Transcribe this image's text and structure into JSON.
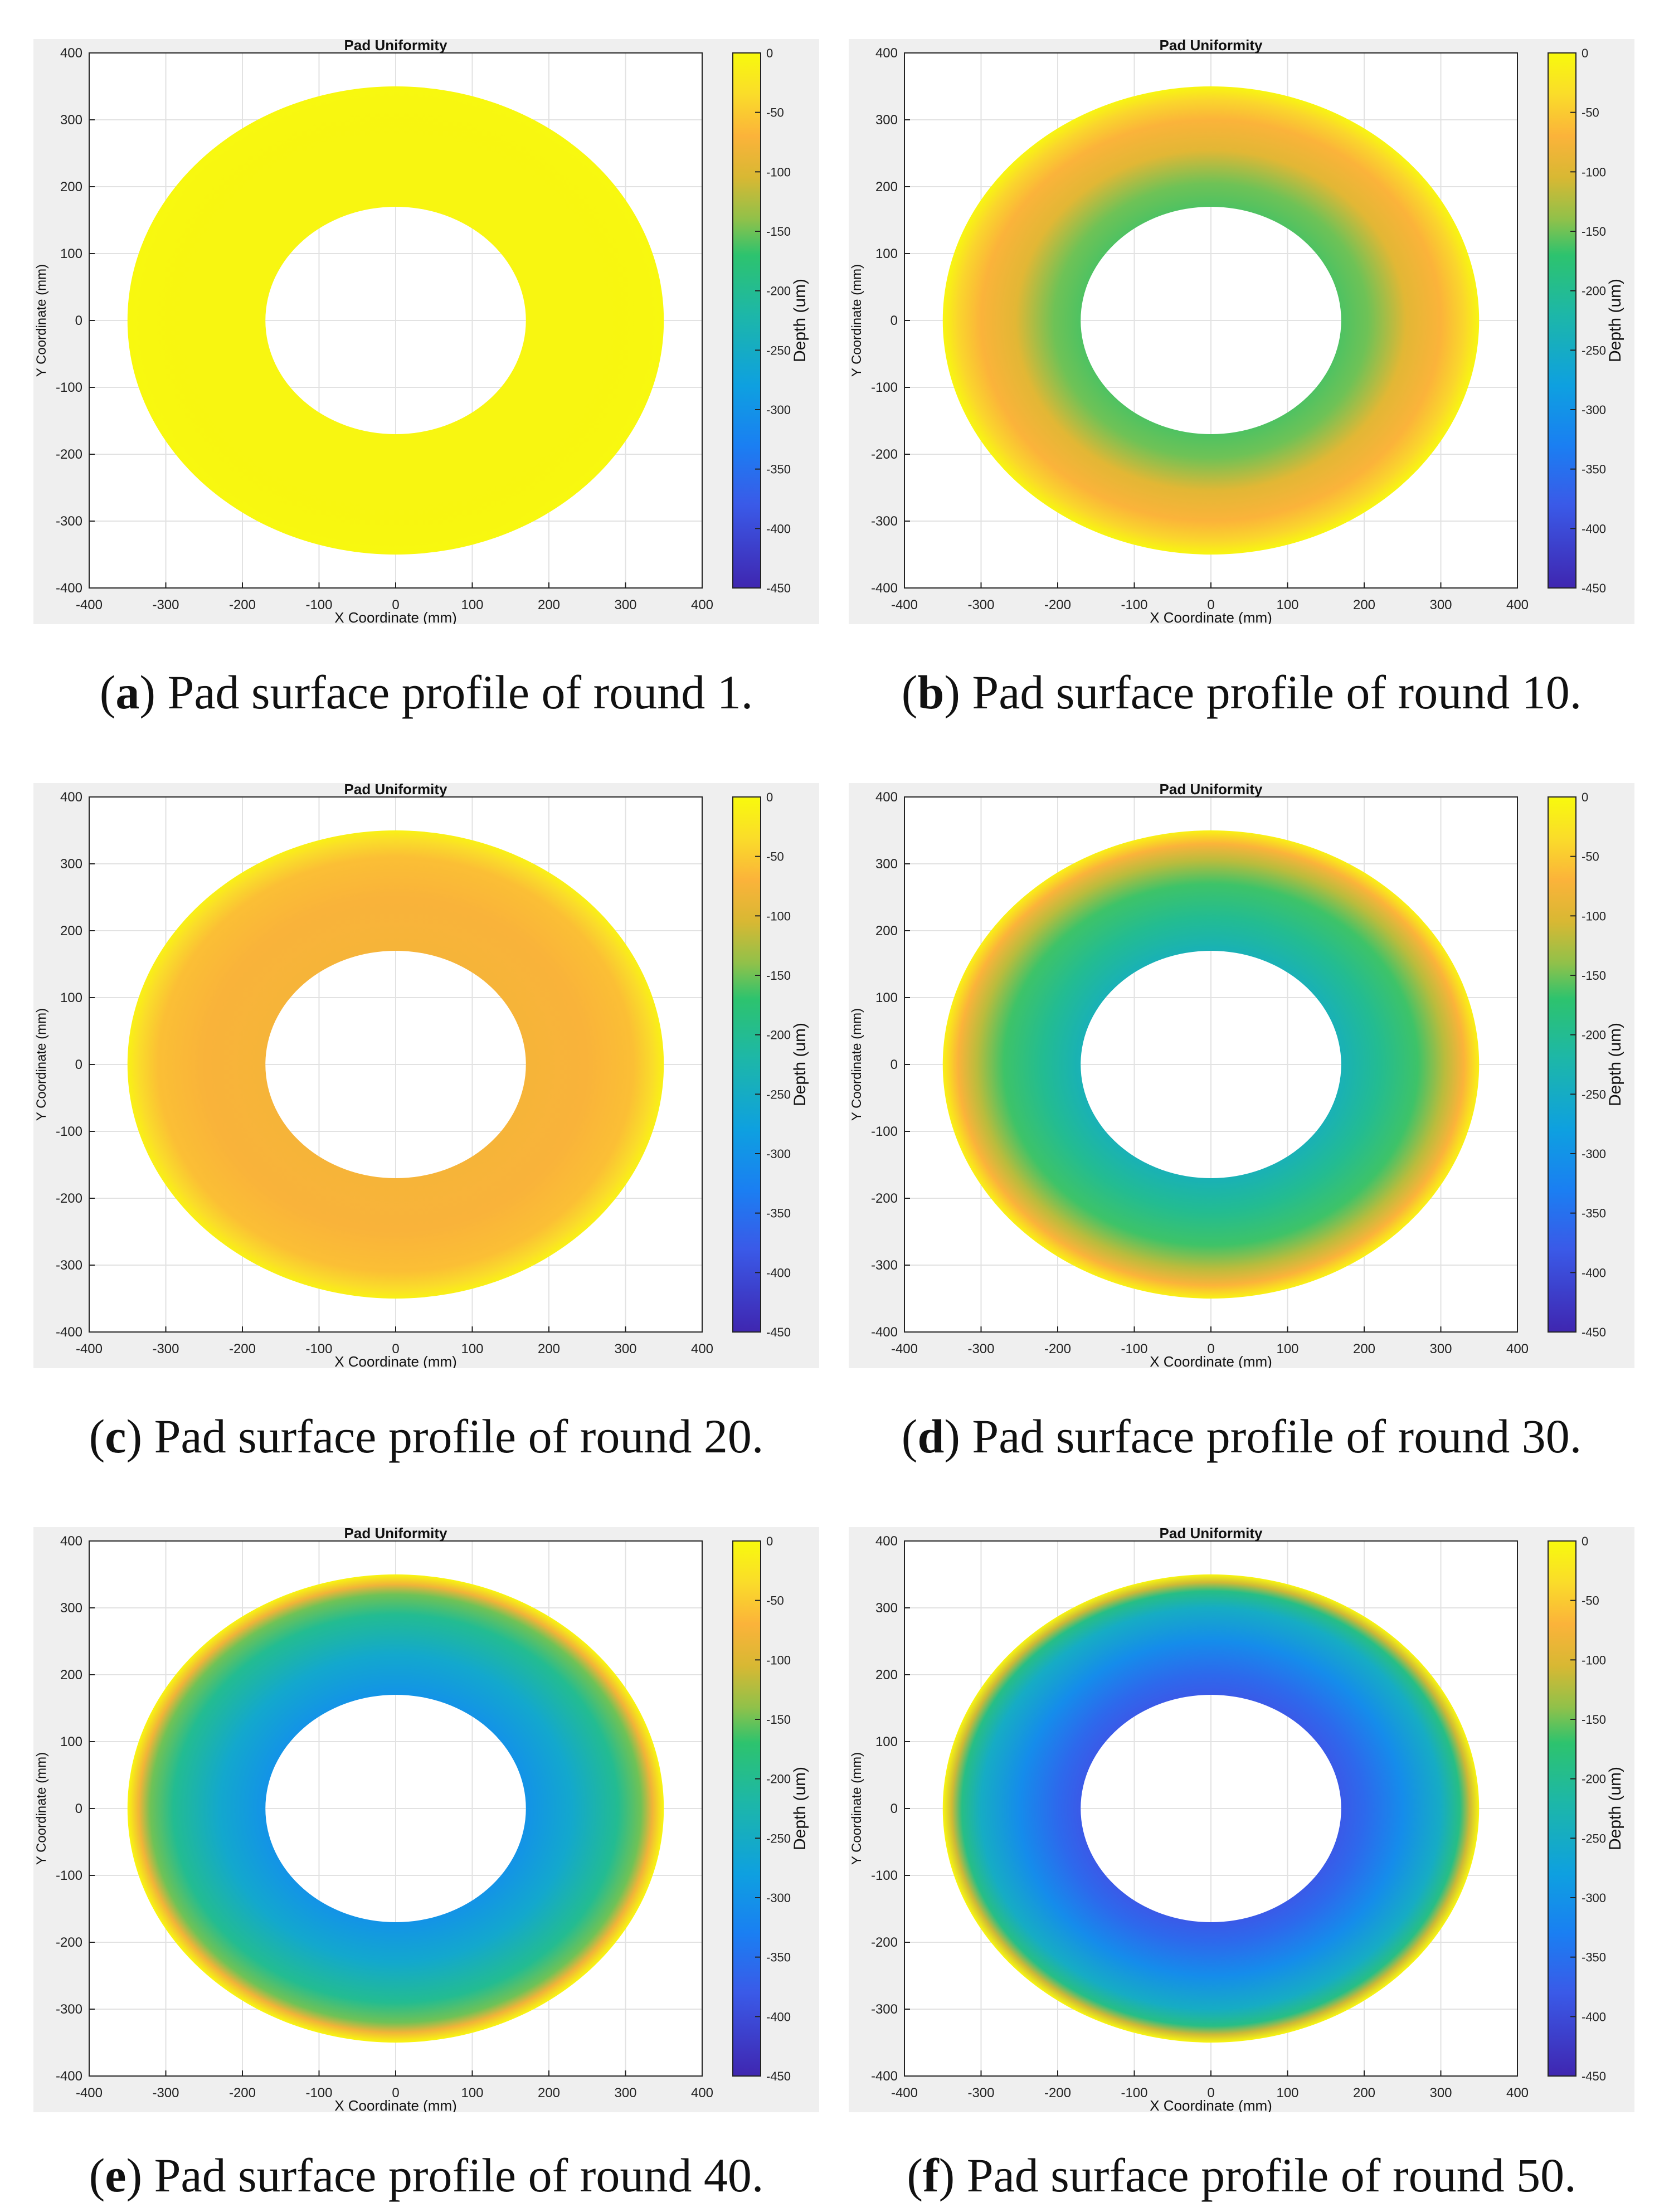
{
  "colors": {
    "panel_background": "#efefef",
    "axes_background": "#ffffff",
    "grid": "#e2e2e2",
    "axis": "#222222"
  },
  "colormap_stops": [
    {
      "depth": 0,
      "color": "#f8fa0d"
    },
    {
      "depth": -35,
      "color": "#fadc2a"
    },
    {
      "depth": -70,
      "color": "#fbb33a"
    },
    {
      "depth": -105,
      "color": "#d8b833"
    },
    {
      "depth": -140,
      "color": "#90c14a"
    },
    {
      "depth": -170,
      "color": "#2dc36e"
    },
    {
      "depth": -220,
      "color": "#1db7a8"
    },
    {
      "depth": -280,
      "color": "#0ea0e0"
    },
    {
      "depth": -330,
      "color": "#1a7ff2"
    },
    {
      "depth": -380,
      "color": "#3a5ae8"
    },
    {
      "depth": -450,
      "color": "#3f26b0"
    }
  ],
  "chart_data": [
    {
      "id": "a",
      "type": "heatmap",
      "title": "Pad Uniformity",
      "xlabel": "X Coordinate (mm)",
      "ylabel": "Y Coordinate (mm)",
      "xlim": [
        -400,
        400
      ],
      "ylim": [
        -400,
        400
      ],
      "xticks": [
        "-400",
        "-300",
        "-200",
        "-100",
        "0",
        "100",
        "200",
        "300",
        "400"
      ],
      "yticks": [
        "400",
        "300",
        "200",
        "100",
        "0",
        "-100",
        "-200",
        "-300",
        "-400"
      ],
      "grid": true,
      "colorbar": {
        "label": "Depth (um)",
        "range": [
          -450,
          0
        ],
        "ticks": [
          "0",
          "-50",
          "-100",
          "-150",
          "-200",
          "-250",
          "-300",
          "-350",
          "-400",
          "-450"
        ]
      },
      "inner_radius": 170,
      "outer_radius": 350,
      "radial_depth_profile": [
        {
          "r": 170,
          "depth": -5
        },
        {
          "r": 260,
          "depth": -5
        },
        {
          "r": 330,
          "depth": -4
        },
        {
          "r": 350,
          "depth": -2
        }
      ],
      "caption_letter": "a",
      "caption_text": ") Pad surface profile of round 1."
    },
    {
      "id": "b",
      "type": "heatmap",
      "title": "Pad Uniformity",
      "xlabel": "X Coordinate (mm)",
      "ylabel": "Y Coordinate (mm)",
      "xlim": [
        -400,
        400
      ],
      "ylim": [
        -400,
        400
      ],
      "xticks": [
        "-400",
        "-300",
        "-200",
        "-100",
        "0",
        "100",
        "200",
        "300",
        "400"
      ],
      "yticks": [
        "400",
        "300",
        "200",
        "100",
        "0",
        "-100",
        "-200",
        "-300",
        "-400"
      ],
      "grid": true,
      "colorbar": {
        "label": "Depth (um)",
        "range": [
          -450,
          0
        ],
        "ticks": [
          "0",
          "-50",
          "-100",
          "-150",
          "-200",
          "-250",
          "-300",
          "-350",
          "-400",
          "-450"
        ]
      },
      "inner_radius": 170,
      "outer_radius": 350,
      "radial_depth_profile": [
        {
          "r": 170,
          "depth": -160
        },
        {
          "r": 205,
          "depth": -150
        },
        {
          "r": 255,
          "depth": -95
        },
        {
          "r": 300,
          "depth": -70
        },
        {
          "r": 330,
          "depth": -40
        },
        {
          "r": 350,
          "depth": -5
        }
      ],
      "caption_letter": "b",
      "caption_text": ") Pad surface profile of round 10."
    },
    {
      "id": "c",
      "type": "heatmap",
      "title": "Pad Uniformity",
      "xlabel": "X Coordinate (mm)",
      "ylabel": "Y Coordinate (mm)",
      "xlim": [
        -400,
        400
      ],
      "ylim": [
        -400,
        400
      ],
      "xticks": [
        "-400",
        "-300",
        "-200",
        "-100",
        "0",
        "100",
        "200",
        "300",
        "400"
      ],
      "yticks": [
        "400",
        "300",
        "200",
        "100",
        "0",
        "-100",
        "-200",
        "-300",
        "-400"
      ],
      "grid": true,
      "colorbar": {
        "label": "Depth (um)",
        "range": [
          -450,
          0
        ],
        "ticks": [
          "0",
          "-50",
          "-100",
          "-150",
          "-200",
          "-250",
          "-300",
          "-350",
          "-400",
          "-450"
        ]
      },
      "inner_radius": 170,
      "outer_radius": 350,
      "radial_depth_profile": [
        {
          "r": 170,
          "depth": -75
        },
        {
          "r": 250,
          "depth": -72
        },
        {
          "r": 310,
          "depth": -60
        },
        {
          "r": 335,
          "depth": -35
        },
        {
          "r": 350,
          "depth": -10
        }
      ],
      "caption_letter": "c",
      "caption_text": ") Pad surface profile of round 20."
    },
    {
      "id": "d",
      "type": "heatmap",
      "title": "Pad Uniformity",
      "xlabel": "X Coordinate (mm)",
      "ylabel": "Y Coordinate (mm)",
      "xlim": [
        -400,
        400
      ],
      "ylim": [
        -400,
        400
      ],
      "xticks": [
        "-400",
        "-300",
        "-200",
        "-100",
        "0",
        "100",
        "200",
        "300",
        "400"
      ],
      "yticks": [
        "400",
        "300",
        "200",
        "100",
        "0",
        "-100",
        "-200",
        "-300",
        "-400"
      ],
      "grid": true,
      "colorbar": {
        "label": "Depth (um)",
        "range": [
          -450,
          0
        ],
        "ticks": [
          "0",
          "-50",
          "-100",
          "-150",
          "-200",
          "-250",
          "-300",
          "-350",
          "-400",
          "-450"
        ]
      },
      "inner_radius": 170,
      "outer_radius": 350,
      "radial_depth_profile": [
        {
          "r": 170,
          "depth": -235
        },
        {
          "r": 220,
          "depth": -200
        },
        {
          "r": 270,
          "depth": -165
        },
        {
          "r": 305,
          "depth": -120
        },
        {
          "r": 330,
          "depth": -70
        },
        {
          "r": 350,
          "depth": -10
        }
      ],
      "caption_letter": "d",
      "caption_text": ") Pad surface profile of round 30."
    },
    {
      "id": "e",
      "type": "heatmap",
      "title": "Pad Uniformity",
      "xlabel": "X Coordinate (mm)",
      "ylabel": "Y Coordinate (mm)",
      "xlim": [
        -400,
        400
      ],
      "ylim": [
        -400,
        400
      ],
      "xticks": [
        "-400",
        "-300",
        "-200",
        "-100",
        "0",
        "100",
        "200",
        "300",
        "400"
      ],
      "yticks": [
        "400",
        "300",
        "200",
        "100",
        "0",
        "-100",
        "-200",
        "-300",
        "-400"
      ],
      "grid": true,
      "colorbar": {
        "label": "Depth (um)",
        "range": [
          -450,
          0
        ],
        "ticks": [
          "0",
          "-50",
          "-100",
          "-150",
          "-200",
          "-250",
          "-300",
          "-350",
          "-400",
          "-450"
        ]
      },
      "inner_radius": 170,
      "outer_radius": 350,
      "radial_depth_profile": [
        {
          "r": 170,
          "depth": -300
        },
        {
          "r": 230,
          "depth": -260
        },
        {
          "r": 290,
          "depth": -200
        },
        {
          "r": 320,
          "depth": -150
        },
        {
          "r": 335,
          "depth": -80
        },
        {
          "r": 350,
          "depth": -5
        }
      ],
      "caption_letter": "e",
      "caption_text": ") Pad surface profile of round 40."
    },
    {
      "id": "f",
      "type": "heatmap",
      "title": "Pad Uniformity",
      "xlabel": "X Coordinate (mm)",
      "ylabel": "Y Coordinate (mm)",
      "xlim": [
        -400,
        400
      ],
      "ylim": [
        -400,
        400
      ],
      "xticks": [
        "-400",
        "-300",
        "-200",
        "-100",
        "0",
        "100",
        "200",
        "300",
        "400"
      ],
      "yticks": [
        "400",
        "300",
        "200",
        "100",
        "0",
        "-100",
        "-200",
        "-300",
        "-400"
      ],
      "grid": true,
      "colorbar": {
        "label": "Depth (um)",
        "range": [
          -450,
          0
        ],
        "ticks": [
          "0",
          "-50",
          "-100",
          "-150",
          "-200",
          "-250",
          "-300",
          "-350",
          "-400",
          "-450"
        ]
      },
      "inner_radius": 170,
      "outer_radius": 350,
      "radial_depth_profile": [
        {
          "r": 170,
          "depth": -380
        },
        {
          "r": 200,
          "depth": -360
        },
        {
          "r": 250,
          "depth": -310
        },
        {
          "r": 300,
          "depth": -250
        },
        {
          "r": 325,
          "depth": -190
        },
        {
          "r": 338,
          "depth": -110
        },
        {
          "r": 350,
          "depth": -5
        }
      ],
      "caption_letter": "f",
      "caption_text": ") Pad surface profile of round 50."
    }
  ]
}
